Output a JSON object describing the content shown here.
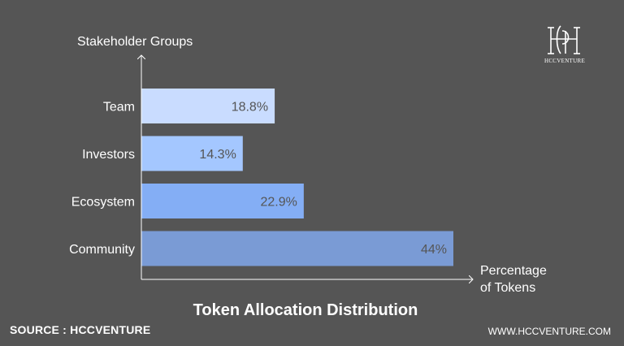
{
  "chart_data": {
    "type": "bar",
    "orientation": "horizontal",
    "title": "Token Allocation Distribution",
    "ylabel": "Stakeholder Groups",
    "xlabel": "Percentage of Tokens",
    "categories": [
      "Team",
      "Investors",
      "Ecosystem",
      "Community"
    ],
    "values": [
      18.8,
      14.3,
      22.9,
      44
    ],
    "value_labels": [
      "18.8%",
      "14.3%",
      "22.9%",
      "44%"
    ],
    "colors": [
      "#c9dcff",
      "#a4c7ff",
      "#84aef5",
      "#7a9bd5"
    ],
    "xlim": [
      0,
      44
    ],
    "grid": false
  },
  "footer": {
    "source": "SOURCE : HCCVENTURE",
    "website": "WWW.HCCVENTURE.COM"
  },
  "logo": {
    "text": "HCCVENTURE",
    "icon": "hcc-monogram-icon"
  }
}
